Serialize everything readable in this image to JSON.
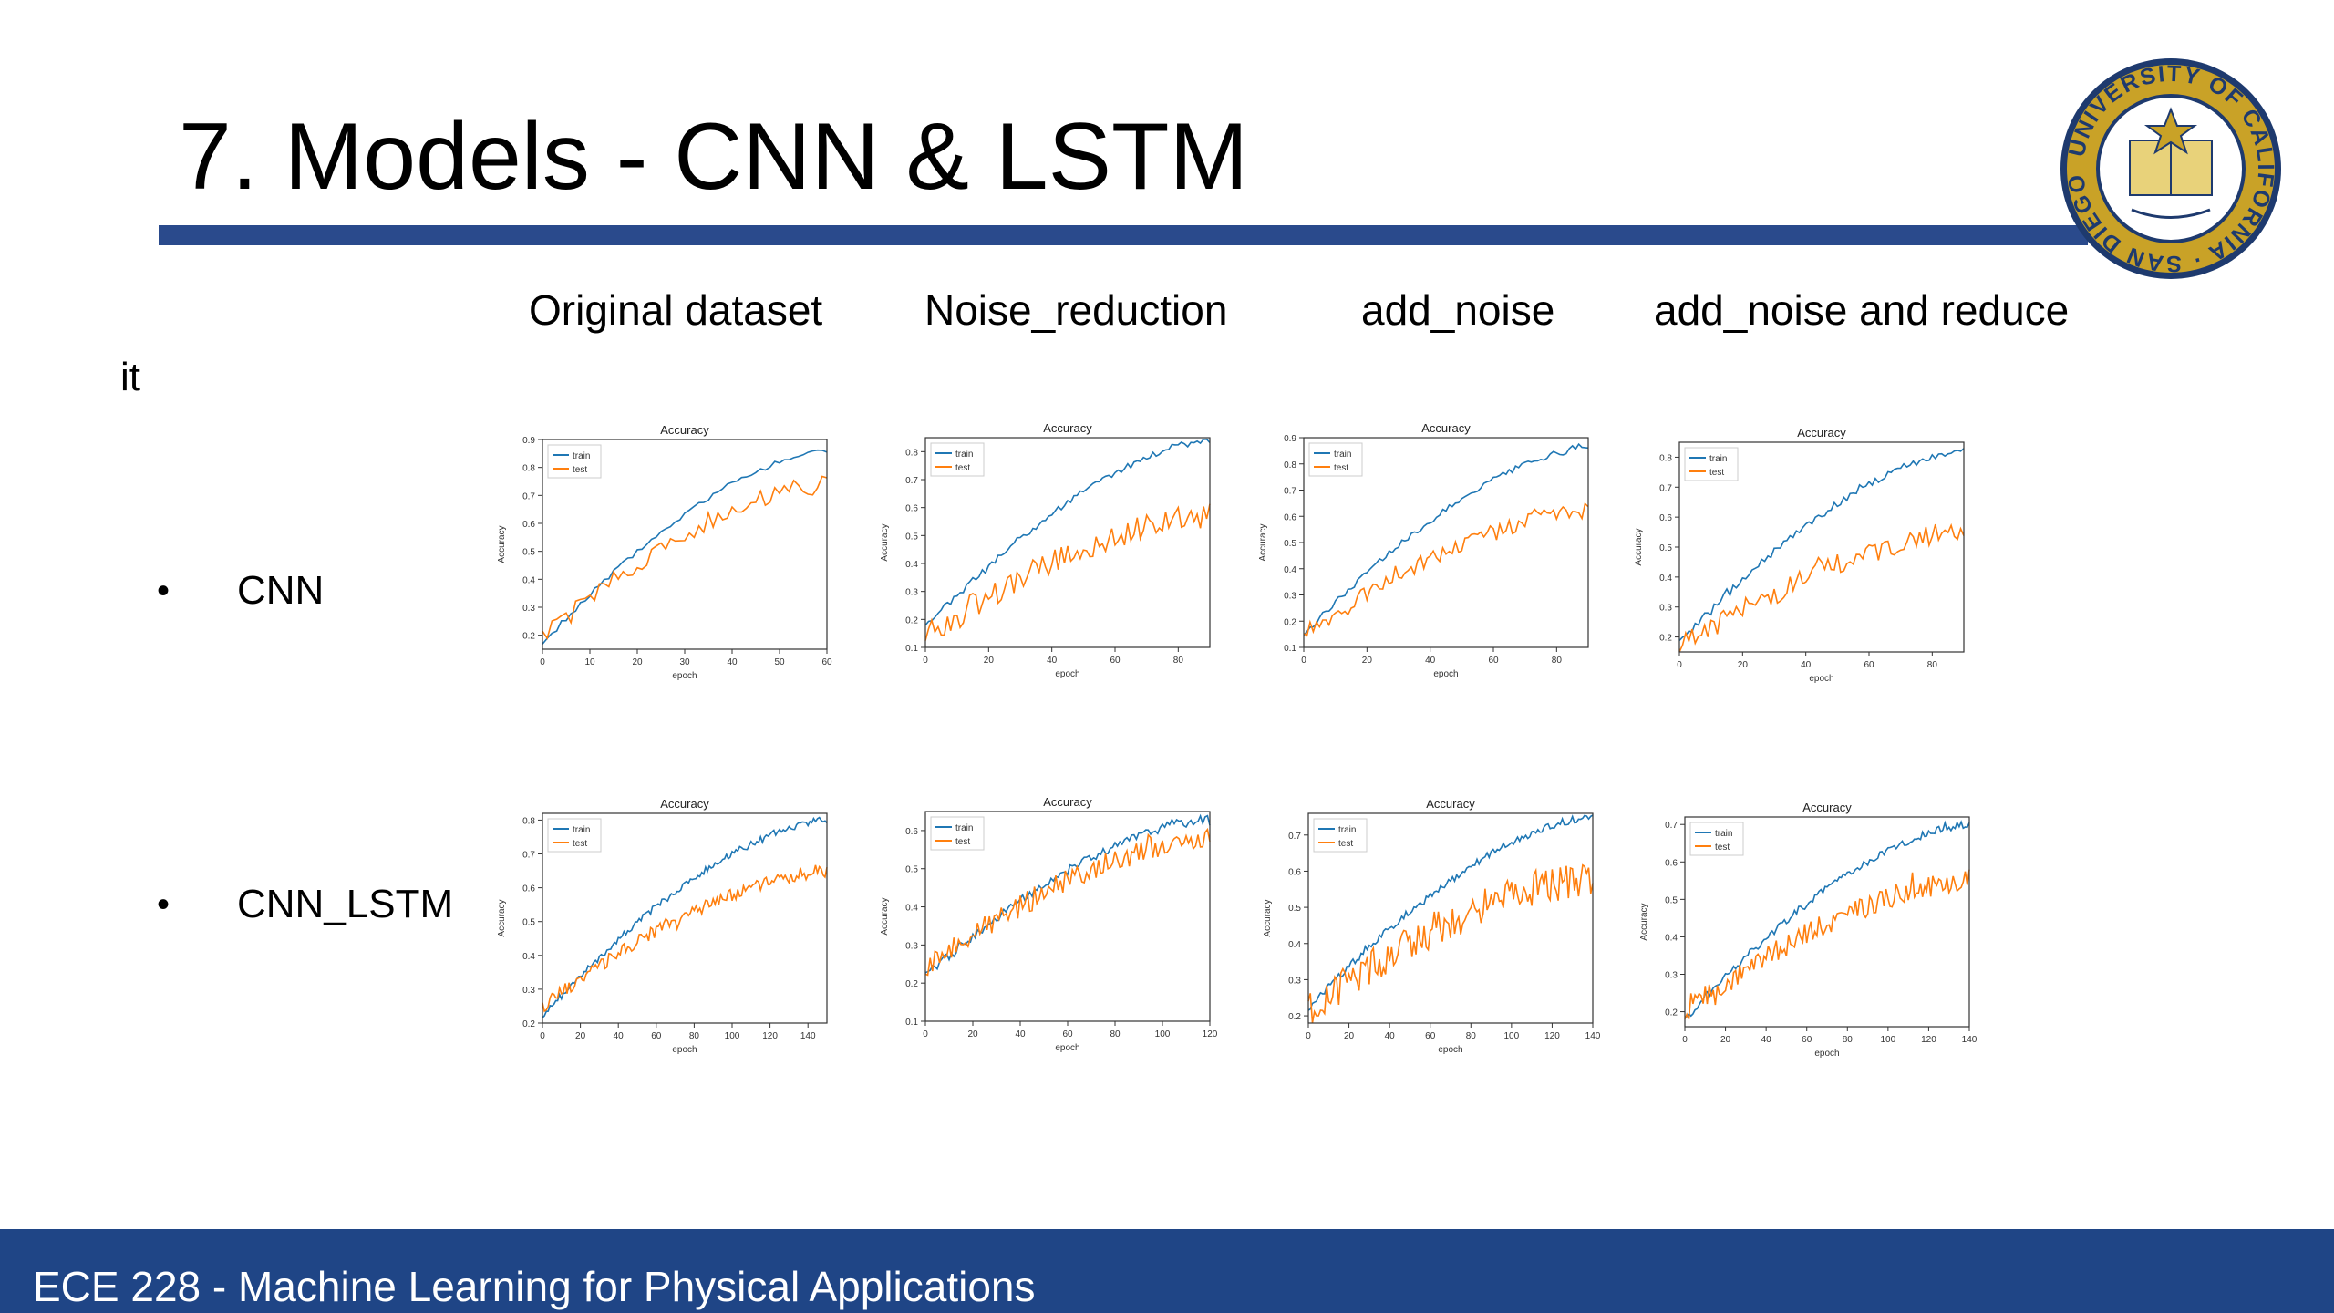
{
  "slide": {
    "title": "7. Models - CNN & LSTM",
    "stray_text": "it",
    "footer": "ECE 228 - Machine Learning for Physical Applications",
    "logo_text": "UNIVERSITY OF CALIFORNIA · SAN DIEGO ·"
  },
  "columns": [
    "Original dataset",
    "Noise_reduction",
    "add_noise",
    "add_noise and reduce"
  ],
  "rows": [
    {
      "bullet": "•",
      "label": "CNN"
    },
    {
      "bullet": "•",
      "label": "CNN_LSTM"
    }
  ],
  "colors": {
    "train": "#1f77b4",
    "test": "#ff7f0e",
    "rule": "#2a4a8c",
    "footer": "#1f4586",
    "seal_gold": "#c9a227",
    "seal_blue": "#1e3a6e"
  },
  "chart_data": [
    {
      "type": "line",
      "title": "Accuracy",
      "xlabel": "epoch",
      "ylabel": "Accuracy",
      "xlim": [
        0,
        60
      ],
      "xticks": [
        0,
        10,
        20,
        30,
        40,
        50,
        60
      ],
      "ylim": [
        0.15,
        0.9
      ],
      "yticks": [
        0.2,
        0.3,
        0.4,
        0.5,
        0.6,
        0.7,
        0.8,
        0.9
      ],
      "legend_position": "top-left",
      "series": [
        {
          "name": "train",
          "start": 0.17,
          "end": 0.86,
          "noise": 0.01
        },
        {
          "name": "test",
          "start": 0.19,
          "end": 0.74,
          "noise": 0.035
        }
      ]
    },
    {
      "type": "line",
      "title": "Accuracy",
      "xlabel": "epoch",
      "ylabel": "Accuracy",
      "xlim": [
        0,
        90
      ],
      "xticks": [
        0,
        20,
        40,
        60,
        80
      ],
      "ylim": [
        0.1,
        0.85
      ],
      "yticks": [
        0.1,
        0.2,
        0.3,
        0.4,
        0.5,
        0.6,
        0.7,
        0.8
      ],
      "legend_position": "top-left",
      "series": [
        {
          "name": "train",
          "start": 0.17,
          "end": 0.84,
          "noise": 0.012
        },
        {
          "name": "test",
          "start": 0.14,
          "end": 0.57,
          "noise": 0.045
        }
      ]
    },
    {
      "type": "line",
      "title": "Accuracy",
      "xlabel": "epoch",
      "ylabel": "Accuracy",
      "xlim": [
        0,
        90
      ],
      "xticks": [
        0,
        20,
        40,
        60,
        80
      ],
      "ylim": [
        0.1,
        0.9
      ],
      "yticks": [
        0.1,
        0.2,
        0.3,
        0.4,
        0.5,
        0.6,
        0.7,
        0.8,
        0.9
      ],
      "legend_position": "top-left",
      "series": [
        {
          "name": "train",
          "start": 0.15,
          "end": 0.86,
          "noise": 0.012
        },
        {
          "name": "test",
          "start": 0.15,
          "end": 0.62,
          "noise": 0.03
        }
      ]
    },
    {
      "type": "line",
      "title": "Accuracy",
      "xlabel": "epoch",
      "ylabel": "Accuracy",
      "xlim": [
        0,
        90
      ],
      "xticks": [
        0,
        20,
        40,
        60,
        80
      ],
      "ylim": [
        0.15,
        0.85
      ],
      "yticks": [
        0.2,
        0.3,
        0.4,
        0.5,
        0.6,
        0.7,
        0.8
      ],
      "legend_position": "top-left",
      "series": [
        {
          "name": "train",
          "start": 0.18,
          "end": 0.82,
          "noise": 0.012
        },
        {
          "name": "test",
          "start": 0.16,
          "end": 0.55,
          "noise": 0.04
        }
      ]
    },
    {
      "type": "line",
      "title": "Accuracy",
      "xlabel": "epoch",
      "ylabel": "Accuracy",
      "xlim": [
        0,
        150
      ],
      "xticks": [
        0,
        20,
        40,
        60,
        80,
        100,
        120,
        140
      ],
      "ylim": [
        0.2,
        0.82
      ],
      "yticks": [
        0.2,
        0.3,
        0.4,
        0.5,
        0.6,
        0.7,
        0.8
      ],
      "legend_position": "top-left",
      "series": [
        {
          "name": "train",
          "start": 0.22,
          "end": 0.8,
          "noise": 0.01
        },
        {
          "name": "test",
          "start": 0.25,
          "end": 0.65,
          "noise": 0.02
        }
      ]
    },
    {
      "type": "line",
      "title": "Accuracy",
      "xlabel": "epoch",
      "ylabel": "Accuracy",
      "xlim": [
        0,
        120
      ],
      "xticks": [
        0,
        20,
        40,
        60,
        80,
        100,
        120
      ],
      "ylim": [
        0.1,
        0.65
      ],
      "yticks": [
        0.1,
        0.2,
        0.3,
        0.4,
        0.5,
        0.6
      ],
      "legend_position": "top-left",
      "series": [
        {
          "name": "train",
          "start": 0.22,
          "end": 0.63,
          "noise": 0.012
        },
        {
          "name": "test",
          "start": 0.24,
          "end": 0.58,
          "noise": 0.03
        }
      ]
    },
    {
      "type": "line",
      "title": "Accuracy",
      "xlabel": "epoch",
      "ylabel": "Accuracy",
      "xlim": [
        0,
        140
      ],
      "xticks": [
        0,
        20,
        40,
        60,
        80,
        100,
        120,
        140
      ],
      "ylim": [
        0.18,
        0.76
      ],
      "yticks": [
        0.2,
        0.3,
        0.4,
        0.5,
        0.6,
        0.7
      ],
      "legend_position": "top-left",
      "series": [
        {
          "name": "train",
          "start": 0.22,
          "end": 0.75,
          "noise": 0.01
        },
        {
          "name": "test",
          "start": 0.22,
          "end": 0.58,
          "noise": 0.05
        }
      ]
    },
    {
      "type": "line",
      "title": "Accuracy",
      "xlabel": "epoch",
      "ylabel": "Accuracy",
      "xlim": [
        0,
        140
      ],
      "xticks": [
        0,
        20,
        40,
        60,
        80,
        100,
        120,
        140
      ],
      "ylim": [
        0.16,
        0.72
      ],
      "yticks": [
        0.2,
        0.3,
        0.4,
        0.5,
        0.6,
        0.7
      ],
      "legend_position": "top-left",
      "series": [
        {
          "name": "train",
          "start": 0.18,
          "end": 0.7,
          "noise": 0.01
        },
        {
          "name": "test",
          "start": 0.2,
          "end": 0.55,
          "noise": 0.03
        }
      ]
    }
  ]
}
